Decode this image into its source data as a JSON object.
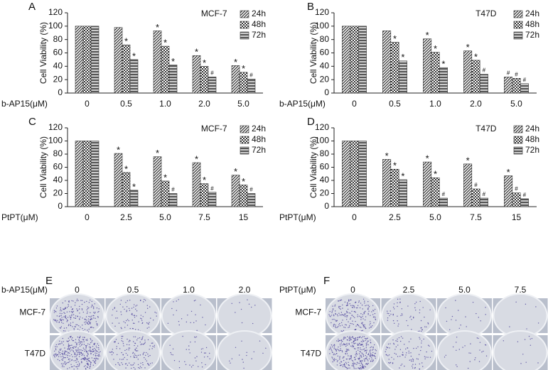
{
  "chart_data": [
    {
      "type": "bar",
      "panel": "A",
      "title": "MCF-7",
      "ylabel": "Cell Viability (%)",
      "xlabel": "b-AP15(μM)",
      "categories": [
        "0",
        "0.5",
        "1.0",
        "2.0",
        "5.0"
      ],
      "series": [
        {
          "name": "24h",
          "color": "#333333",
          "pattern": "diagonal",
          "values": [
            100,
            98,
            93,
            56,
            41
          ],
          "markers": [
            null,
            null,
            "*",
            "*",
            "*"
          ]
        },
        {
          "name": "48h",
          "color": "#333333",
          "pattern": "checker",
          "values": [
            100,
            72,
            70,
            40,
            31
          ],
          "markers": [
            null,
            "*",
            "*",
            "*",
            "*"
          ]
        },
        {
          "name": "72h",
          "color": "#555555",
          "pattern": "horizontal",
          "values": [
            100,
            50,
            42,
            24,
            21
          ],
          "markers": [
            null,
            "*",
            "*",
            "#",
            "#"
          ]
        }
      ],
      "ylim": [
        0,
        120
      ],
      "yticks": [
        0,
        20,
        40,
        60,
        80,
        100,
        120
      ]
    },
    {
      "type": "bar",
      "panel": "B",
      "title": "T47D",
      "ylabel": "Cell Viability (%)",
      "xlabel": "b-AP15(μM)",
      "categories": [
        "0",
        "0.5",
        "1.0",
        "2.0",
        "5.0"
      ],
      "series": [
        {
          "name": "24h",
          "color": "#333333",
          "pattern": "diagonal",
          "values": [
            100,
            93,
            81,
            63,
            24
          ],
          "markers": [
            null,
            null,
            "*",
            "*",
            "#"
          ]
        },
        {
          "name": "48h",
          "color": "#333333",
          "pattern": "checker",
          "values": [
            100,
            76,
            61,
            49,
            22
          ],
          "markers": [
            null,
            "*",
            "*",
            "*",
            "#"
          ]
        },
        {
          "name": "72h",
          "color": "#555555",
          "pattern": "horizontal",
          "values": [
            100,
            48,
            38,
            28,
            14
          ],
          "markers": [
            null,
            "*",
            "*",
            "#",
            "#"
          ]
        }
      ],
      "ylim": [
        0,
        120
      ],
      "yticks": [
        0,
        20,
        40,
        60,
        80,
        100,
        120
      ]
    },
    {
      "type": "bar",
      "panel": "C",
      "title": "MCF-7",
      "ylabel": "Cell Viability (%)",
      "xlabel": "PtPT(μM)",
      "categories": [
        "0",
        "2.5",
        "5.0",
        "7.5",
        "15"
      ],
      "series": [
        {
          "name": "24h",
          "color": "#333333",
          "pattern": "diagonal",
          "values": [
            100,
            81,
            76,
            67,
            48
          ],
          "markers": [
            null,
            "*",
            "*",
            "*",
            "*"
          ]
        },
        {
          "name": "48h",
          "color": "#333333",
          "pattern": "checker",
          "values": [
            100,
            52,
            39,
            35,
            33
          ],
          "markers": [
            null,
            "*",
            "*",
            "*",
            "*"
          ]
        },
        {
          "name": "72h",
          "color": "#555555",
          "pattern": "horizontal",
          "values": [
            100,
            25,
            20,
            22,
            20
          ],
          "markers": [
            null,
            "*",
            "#",
            "#",
            "#"
          ]
        }
      ],
      "ylim": [
        0,
        120
      ],
      "yticks": [
        0,
        20,
        40,
        60,
        80,
        100,
        120
      ]
    },
    {
      "type": "bar",
      "panel": "D",
      "title": "T47D",
      "ylabel": "Cell Viability (%)",
      "xlabel": "PtPT(μM)",
      "categories": [
        "0",
        "2.5",
        "5.0",
        "7.5",
        "15"
      ],
      "series": [
        {
          "name": "24h",
          "color": "#333333",
          "pattern": "diagonal",
          "values": [
            100,
            72,
            68,
            65,
            47
          ],
          "markers": [
            null,
            "*",
            "*",
            "*",
            "*"
          ]
        },
        {
          "name": "48h",
          "color": "#333333",
          "pattern": "checker",
          "values": [
            100,
            57,
            44,
            27,
            21
          ],
          "markers": [
            null,
            "*",
            "*",
            "#",
            "#"
          ]
        },
        {
          "name": "72h",
          "color": "#555555",
          "pattern": "horizontal",
          "values": [
            100,
            41,
            13,
            13,
            12
          ],
          "markers": [
            null,
            "*",
            "#",
            "#",
            "#"
          ]
        }
      ],
      "ylim": [
        0,
        120
      ],
      "yticks": [
        0,
        20,
        40,
        60,
        80,
        100,
        120
      ]
    }
  ],
  "colony_assays": [
    {
      "panel": "E",
      "treatment": "b-AP15(μM)",
      "doses": [
        "0",
        "0.5",
        "1.0",
        "2.0"
      ],
      "cell_lines": [
        "MCF-7",
        "T47D"
      ]
    },
    {
      "panel": "F",
      "treatment": "PtPT(μM)",
      "doses": [
        "0",
        "2.5",
        "5.0",
        "7.5"
      ],
      "cell_lines": [
        "MCF-7",
        "T47D"
      ]
    }
  ]
}
